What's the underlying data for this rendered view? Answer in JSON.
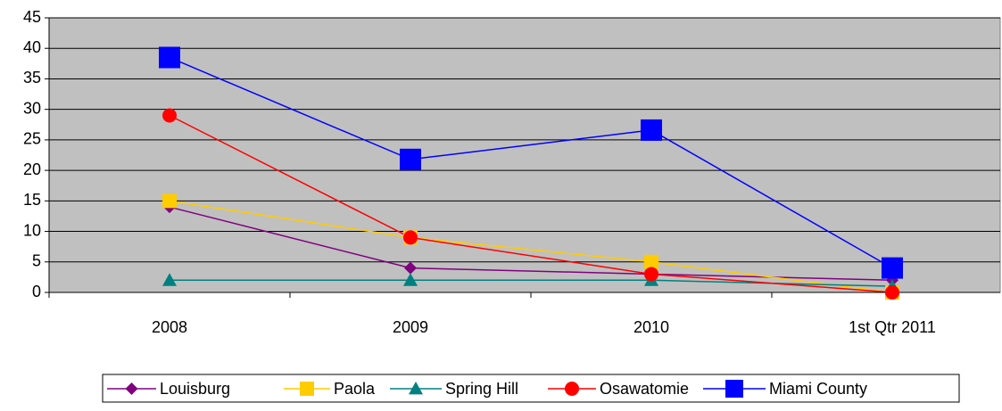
{
  "chart_data": {
    "type": "line",
    "categories": [
      "2008",
      "2009",
      "2010",
      "1st Qtr 2011"
    ],
    "series": [
      {
        "name": "Louisburg",
        "color": "#800080",
        "marker": "diamond",
        "values": [
          14,
          4,
          3,
          2
        ]
      },
      {
        "name": "Paola",
        "color": "#ffcc00",
        "marker": "square",
        "values": [
          15,
          9,
          5,
          0
        ]
      },
      {
        "name": "Spring Hill",
        "color": "#008080",
        "marker": "triangle",
        "values": [
          2,
          2,
          2,
          1
        ]
      },
      {
        "name": "Osawatomie",
        "color": "#ff0000",
        "marker": "circle",
        "values": [
          29,
          9,
          3,
          0
        ]
      },
      {
        "name": "Miami County",
        "color": "#0000ff",
        "marker": "square",
        "values": [
          38.5,
          21.8,
          26.6,
          4
        ]
      }
    ],
    "ylim": [
      0,
      45
    ],
    "yticks": [
      0,
      5,
      10,
      15,
      20,
      25,
      30,
      35,
      40,
      45
    ],
    "grid": true,
    "legend": "bottom"
  }
}
